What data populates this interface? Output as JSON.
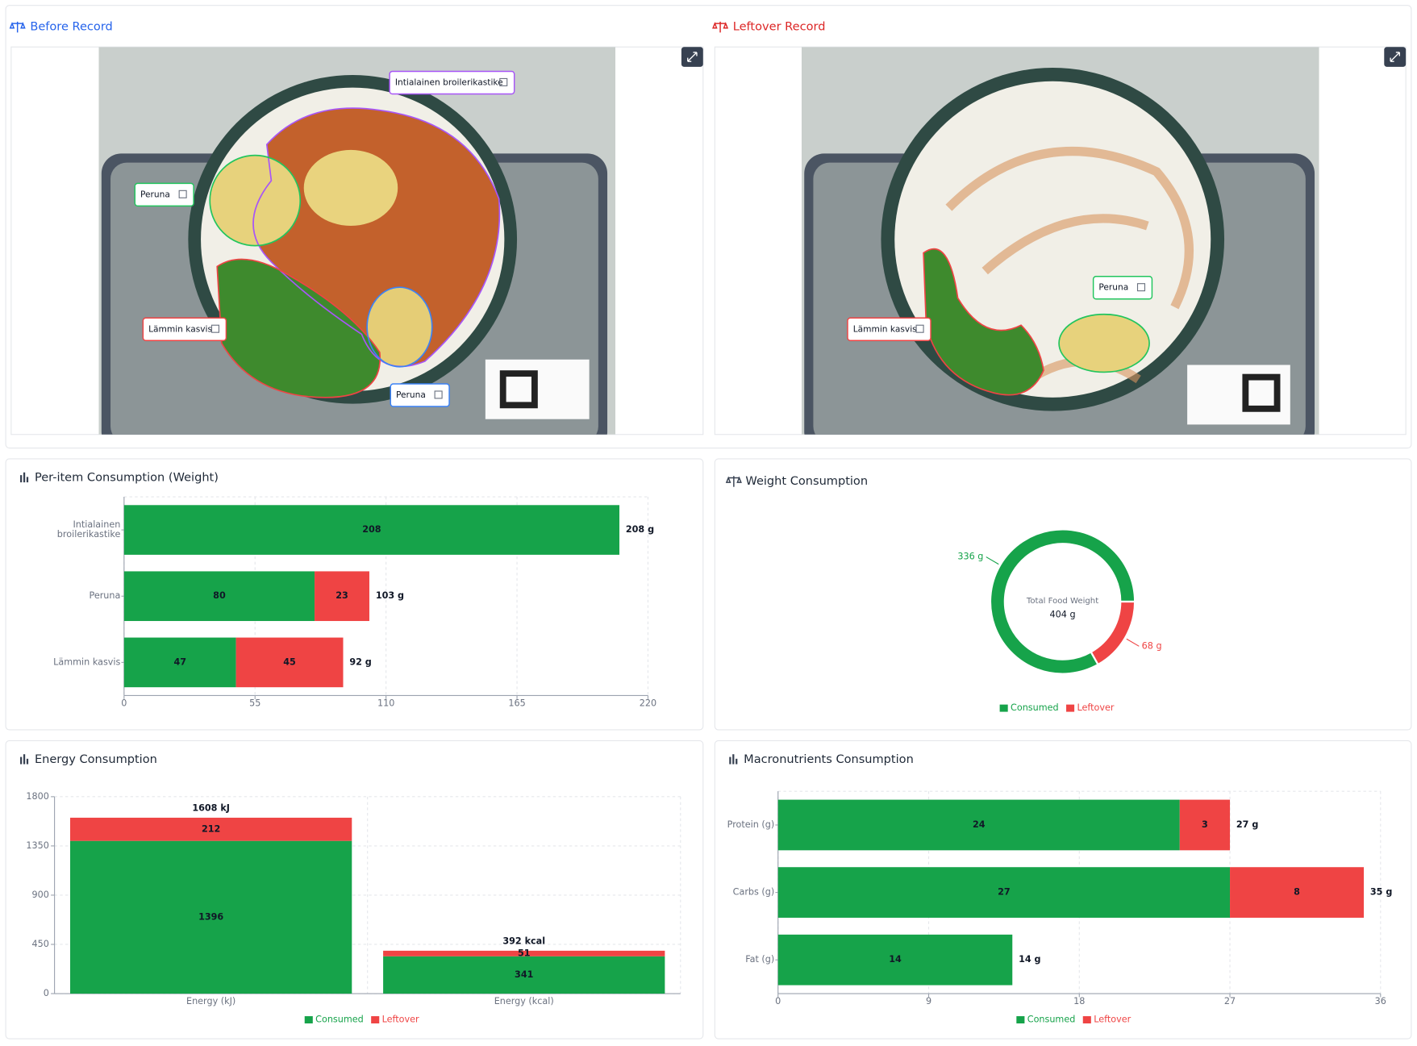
{
  "panels": [
    {
      "title": "Before Record",
      "labels": [
        "Intialainen broilerikastike",
        "Peruna",
        "Lämmin kasvis",
        "Peruna"
      ]
    },
    {
      "title": "Leftover Record",
      "labels": [
        "Peruna",
        "Lämmin kasvis"
      ]
    }
  ],
  "chart_data": [
    {
      "type": "bar",
      "horizontal": true,
      "title": "Per-item Consumption (Weight)",
      "categories": [
        "Intialainen broilerikastike",
        "Peruna",
        "Lämmin kasvis"
      ],
      "series": [
        {
          "name": "Consumed",
          "color": "#16a34a",
          "values": [
            208,
            80,
            47
          ]
        },
        {
          "name": "Leftover",
          "color": "#ef4444",
          "values": [
            null,
            23,
            45
          ]
        }
      ],
      "total_labels": [
        "208 g",
        "103 g",
        "92 g"
      ],
      "xlim": [
        0,
        220
      ],
      "xticks": [
        0,
        55,
        110,
        165,
        220
      ],
      "grid": true,
      "legend": false
    },
    {
      "type": "donut",
      "title": "Weight Consumption",
      "categories": [
        "Consumed",
        "Leftover"
      ],
      "values": [
        336,
        68
      ],
      "value_labels": [
        "336 g",
        "68 g"
      ],
      "colors": [
        "#16a34a",
        "#ef4444"
      ],
      "center_title": "Total Food Weight",
      "center_label": "404 g",
      "legend": "bottom"
    },
    {
      "type": "bar",
      "horizontal": false,
      "title": "Energy Consumption",
      "categories": [
        "Energy (kJ)",
        "Energy (kcal)"
      ],
      "series": [
        {
          "name": "Consumed",
          "color": "#16a34a",
          "values": [
            1396,
            341
          ]
        },
        {
          "name": "Leftover",
          "color": "#ef4444",
          "values": [
            212,
            51
          ]
        }
      ],
      "total_labels": [
        "1608 kJ",
        "392 kcal"
      ],
      "ylim": [
        0,
        1800
      ],
      "yticks": [
        0,
        450,
        900,
        1350,
        1800
      ],
      "grid": true,
      "legend": "bottom"
    },
    {
      "type": "bar",
      "horizontal": true,
      "title": "Macronutrients Consumption",
      "categories": [
        "Protein (g)",
        "Carbs (g)",
        "Fat (g)"
      ],
      "series": [
        {
          "name": "Consumed",
          "color": "#16a34a",
          "values": [
            24,
            27,
            14
          ]
        },
        {
          "name": "Leftover",
          "color": "#ef4444",
          "values": [
            3,
            8,
            null
          ]
        }
      ],
      "total_labels": [
        "27 g",
        "35 g",
        "14 g"
      ],
      "xlim": [
        0,
        36
      ],
      "xticks": [
        0,
        9,
        18,
        27,
        36
      ],
      "grid": true,
      "legend": "bottom"
    }
  ]
}
